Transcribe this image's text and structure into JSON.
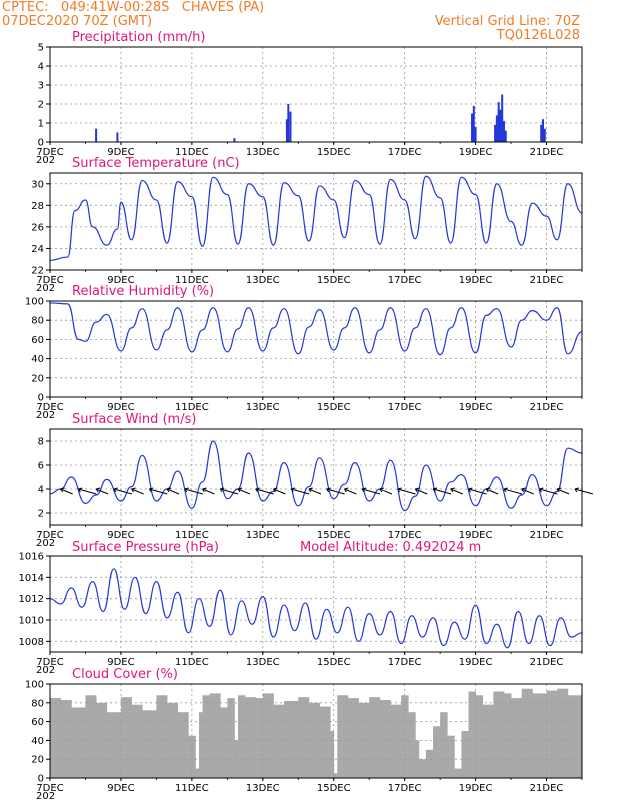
{
  "header": {
    "station": "CPTEC:   049:41W-00:28S   CHAVES (PA)",
    "date": "07DEC2020 70Z (GMT)",
    "grid_line": "Vertical Grid Line: 70Z",
    "code": "TQ0126L028"
  },
  "colors": {
    "header": "#f07c28",
    "title": "#e0167a",
    "line": "#2336d8",
    "cloud": "#a9a9a9"
  },
  "x_axis": {
    "start_day": 7,
    "end_day": 22,
    "tick_labels": [
      "7DEC",
      "9DEC",
      "11DEC",
      "13DEC",
      "15DEC",
      "17DEC",
      "19DEC",
      "21DEC"
    ],
    "tick_days": [
      7,
      9,
      11,
      13,
      15,
      17,
      19,
      21
    ],
    "year_fragment": "202"
  },
  "panels": {
    "precip": {
      "title": "Precipitation (mm/h)"
    },
    "temp": {
      "title": "Surface Temperature (nC)"
    },
    "rh": {
      "title": "Relative Humidity (%)"
    },
    "wind": {
      "title": "Surface Wind (m/s)"
    },
    "pres": {
      "title": "Surface Pressure (hPa)",
      "extra": "Model Altitude: 0.492024 m"
    },
    "cloud": {
      "title": "Cloud Cover (%)"
    }
  },
  "chart_data": [
    {
      "id": "precip",
      "type": "bar",
      "title": "Precipitation (mm/h)",
      "ylim": [
        0,
        5
      ],
      "yticks": [
        0,
        1,
        2,
        3,
        4,
        5
      ],
      "x": [
        8.3,
        8.9,
        12.2,
        13.68,
        13.72,
        13.78,
        18.9,
        18.95,
        19.0,
        19.55,
        19.6,
        19.65,
        19.7,
        19.75,
        19.8,
        19.85,
        20.85,
        20.9,
        20.95
      ],
      "values": [
        0.7,
        0.5,
        0.2,
        1.2,
        2.0,
        1.6,
        1.5,
        1.9,
        0.8,
        0.9,
        1.4,
        2.1,
        1.7,
        2.5,
        1.1,
        0.6,
        0.9,
        1.2,
        0.7
      ]
    },
    {
      "id": "temp",
      "type": "line",
      "title": "Surface Temperature (nC)",
      "ylim": [
        22,
        31
      ],
      "yticks": [
        22,
        24,
        26,
        28,
        30
      ],
      "x": [
        7.0,
        7.5,
        7.7,
        8.0,
        8.2,
        8.6,
        8.9,
        9.0,
        9.3,
        9.6,
        10.0,
        10.3,
        10.6,
        11.0,
        11.3,
        11.6,
        12.0,
        12.3,
        12.6,
        13.0,
        13.3,
        13.6,
        14.0,
        14.3,
        14.6,
        15.0,
        15.3,
        15.6,
        16.0,
        16.3,
        16.6,
        17.0,
        17.3,
        17.6,
        18.0,
        18.3,
        18.6,
        19.0,
        19.3,
        19.6,
        20.0,
        20.3,
        20.6,
        21.0,
        21.3,
        21.6,
        22.0
      ],
      "values": [
        22.9,
        23.2,
        27.5,
        28.5,
        26.0,
        24.3,
        25.8,
        28.3,
        24.8,
        30.3,
        28.5,
        24.5,
        30.2,
        28.8,
        24.2,
        30.6,
        29.0,
        24.4,
        30.0,
        28.8,
        24.3,
        30.1,
        28.9,
        24.7,
        29.8,
        28.5,
        25.0,
        30.3,
        29.0,
        24.4,
        30.4,
        28.5,
        24.9,
        30.7,
        28.7,
        24.5,
        30.6,
        29.0,
        24.5,
        30.0,
        26.5,
        24.3,
        28.2,
        27.0,
        24.8,
        30.0,
        27.3
      ]
    },
    {
      "id": "rh",
      "type": "line",
      "title": "Relative Humidity (%)",
      "ylim": [
        0,
        100
      ],
      "yticks": [
        0,
        20,
        40,
        60,
        80,
        100
      ],
      "x": [
        7.0,
        7.5,
        7.8,
        8.0,
        8.3,
        8.6,
        9.0,
        9.3,
        9.6,
        10.0,
        10.3,
        10.6,
        11.0,
        11.3,
        11.6,
        12.0,
        12.3,
        12.6,
        13.0,
        13.3,
        13.6,
        14.0,
        14.3,
        14.6,
        15.0,
        15.3,
        15.6,
        16.0,
        16.3,
        16.6,
        17.0,
        17.3,
        17.6,
        18.0,
        18.3,
        18.6,
        19.0,
        19.3,
        19.6,
        20.0,
        20.3,
        20.6,
        21.0,
        21.3,
        21.6,
        22.0
      ],
      "values": [
        98,
        97,
        60,
        58,
        78,
        86,
        48,
        72,
        92,
        49,
        70,
        93,
        47,
        70,
        93,
        47,
        71,
        93,
        48,
        72,
        92,
        45,
        73,
        91,
        49,
        72,
        93,
        46,
        70,
        93,
        48,
        72,
        92,
        44,
        72,
        93,
        46,
        85,
        92,
        52,
        80,
        90,
        80,
        93,
        45,
        68
      ]
    },
    {
      "id": "wind",
      "type": "line",
      "title": "Surface Wind (m/s)",
      "ylim": [
        1,
        9
      ],
      "yticks": [
        2,
        4,
        6,
        8
      ],
      "x": [
        7.0,
        7.3,
        7.6,
        8.0,
        8.3,
        8.6,
        9.0,
        9.3,
        9.6,
        10.0,
        10.3,
        10.6,
        11.0,
        11.3,
        11.6,
        12.0,
        12.3,
        12.6,
        13.0,
        13.3,
        13.6,
        14.0,
        14.3,
        14.6,
        15.0,
        15.3,
        15.6,
        16.0,
        16.3,
        16.6,
        17.0,
        17.3,
        17.6,
        18.0,
        18.3,
        18.6,
        19.0,
        19.3,
        19.6,
        20.0,
        20.3,
        20.6,
        21.0,
        21.3,
        21.6,
        22.0
      ],
      "values": [
        3.6,
        4.0,
        5.0,
        2.8,
        3.5,
        4.8,
        3.0,
        4.2,
        6.8,
        3.0,
        4.0,
        5.5,
        2.4,
        4.6,
        8.0,
        3.2,
        4.0,
        7.0,
        3.0,
        3.8,
        6.2,
        2.6,
        4.2,
        6.6,
        3.2,
        4.4,
        6.2,
        3.0,
        4.0,
        6.4,
        2.2,
        3.4,
        6.0,
        3.0,
        4.6,
        5.2,
        2.6,
        4.0,
        5.0,
        2.4,
        3.5,
        5.2,
        2.6,
        3.8,
        7.4,
        7.0
      ]
    },
    {
      "id": "pres",
      "type": "line",
      "title": "Surface Pressure (hPa)",
      "ylim": [
        1007,
        1016
      ],
      "yticks": [
        1008,
        1010,
        1012,
        1014,
        1016
      ],
      "x": [
        7.0,
        7.3,
        7.6,
        7.9,
        8.2,
        8.5,
        8.8,
        9.1,
        9.4,
        9.7,
        10.0,
        10.3,
        10.6,
        10.9,
        11.2,
        11.5,
        11.8,
        12.1,
        12.4,
        12.7,
        13.0,
        13.3,
        13.6,
        13.9,
        14.2,
        14.5,
        14.8,
        15.1,
        15.4,
        15.7,
        16.0,
        16.3,
        16.6,
        16.9,
        17.2,
        17.5,
        17.8,
        18.1,
        18.4,
        18.7,
        19.0,
        19.3,
        19.6,
        19.9,
        20.2,
        20.5,
        20.8,
        21.1,
        21.4,
        21.7,
        22.0
      ],
      "values": [
        1012.0,
        1011.5,
        1013.0,
        1011.2,
        1013.6,
        1010.8,
        1014.8,
        1011.0,
        1014.0,
        1010.6,
        1013.6,
        1010.2,
        1012.6,
        1008.8,
        1012.0,
        1009.4,
        1012.8,
        1008.6,
        1011.8,
        1009.6,
        1012.2,
        1008.4,
        1011.4,
        1009.0,
        1011.6,
        1008.2,
        1011.0,
        1008.8,
        1011.2,
        1008.0,
        1010.6,
        1008.6,
        1010.8,
        1007.8,
        1010.4,
        1008.4,
        1010.2,
        1007.6,
        1009.8,
        1008.2,
        1011.4,
        1007.8,
        1009.6,
        1007.4,
        1010.8,
        1007.8,
        1010.4,
        1007.6,
        1010.2,
        1008.4,
        1008.8
      ]
    },
    {
      "id": "cloud",
      "type": "area",
      "title": "Cloud Cover (%)",
      "ylim": [
        0,
        100
      ],
      "yticks": [
        0,
        20,
        40,
        60,
        80,
        100
      ],
      "x": [
        7.0,
        7.3,
        7.6,
        8.0,
        8.3,
        8.6,
        9.0,
        9.3,
        9.6,
        10.0,
        10.3,
        10.6,
        10.9,
        11.1,
        11.2,
        11.3,
        11.5,
        11.8,
        12.0,
        12.2,
        12.3,
        12.5,
        12.8,
        13.0,
        13.3,
        13.6,
        14.0,
        14.3,
        14.6,
        14.9,
        15.0,
        15.1,
        15.4,
        15.7,
        16.0,
        16.3,
        16.6,
        16.9,
        17.1,
        17.3,
        17.4,
        17.6,
        17.8,
        18.0,
        18.2,
        18.4,
        18.6,
        18.8,
        19.0,
        19.2,
        19.5,
        19.8,
        20.0,
        20.3,
        20.6,
        21.0,
        21.3,
        21.6,
        22.0
      ],
      "values": [
        85,
        83,
        75,
        88,
        80,
        70,
        86,
        78,
        72,
        88,
        80,
        70,
        45,
        10,
        70,
        88,
        90,
        75,
        85,
        40,
        88,
        86,
        85,
        90,
        78,
        82,
        86,
        80,
        76,
        50,
        5,
        88,
        85,
        80,
        86,
        83,
        78,
        88,
        70,
        40,
        20,
        30,
        55,
        70,
        45,
        10,
        50,
        92,
        88,
        78,
        92,
        90,
        85,
        95,
        90,
        93,
        95,
        88,
        85
      ]
    }
  ]
}
